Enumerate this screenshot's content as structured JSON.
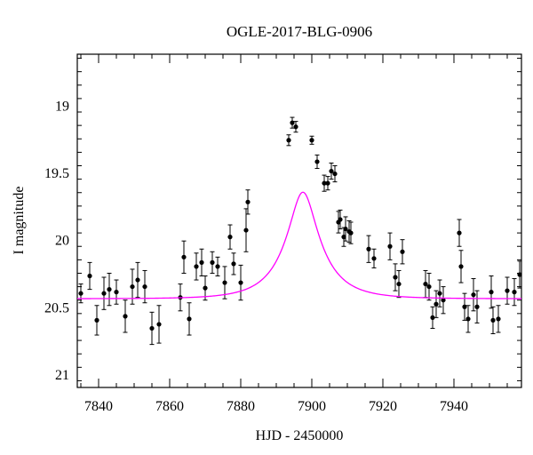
{
  "chart_data": {
    "type": "scatter",
    "title": "OGLE-2017-BLG-0906",
    "xlabel": "HJD - 2450000",
    "ylabel": "I magnitude",
    "xlim": [
      7834,
      7959
    ],
    "ylim": [
      21.1,
      18.62
    ],
    "y_inverted": true,
    "grid": false,
    "x_ticks": [
      7840,
      7860,
      7880,
      7900,
      7920,
      7940
    ],
    "y_ticks": [
      19,
      19.5,
      20,
      20.5,
      21
    ],
    "x_tick_labels": [
      "7840",
      "7860",
      "7880",
      "7900",
      "7920",
      "7940"
    ],
    "y_tick_labels": [
      "19",
      "19.5",
      "20",
      "20.5",
      "21"
    ],
    "colors": {
      "model": "#ff00ff",
      "points": "#000000",
      "axes": "#000000"
    },
    "series": [
      {
        "type": "errorbar",
        "x": [
          7835,
          7837.5,
          7839.5,
          7841.5,
          7843,
          7845,
          7847.5,
          7849.5,
          7851,
          7853,
          7855,
          7857,
          7863,
          7864,
          7865.5,
          7867.5,
          7869,
          7870,
          7872,
          7873.5,
          7875.5,
          7877,
          7878,
          7880,
          7881.5,
          7882,
          7893.5,
          7894.5,
          7895.5,
          7900,
          7901.5,
          7903.5,
          7904.5,
          7905.5,
          7906.5,
          7907.5,
          7908,
          7909,
          7909.5,
          7910.5,
          7911,
          7916,
          7917.5,
          7922,
          7923.5,
          7924.5,
          7925.5,
          7932,
          7933,
          7934,
          7935,
          7936,
          7937,
          7941.5,
          7942,
          7943,
          7944,
          7945.5,
          7946.5,
          7950.5,
          7951,
          7952.5,
          7955,
          7957,
          7958.5
        ],
        "y": [
          20.4,
          20.27,
          20.6,
          20.4,
          20.37,
          20.39,
          20.57,
          20.35,
          20.3,
          20.35,
          20.66,
          20.63,
          20.43,
          20.13,
          20.59,
          20.2,
          20.17,
          20.36,
          20.17,
          20.2,
          20.32,
          19.98,
          20.18,
          20.32,
          19.93,
          19.72,
          19.26,
          19.13,
          19.16,
          19.26,
          19.42,
          19.58,
          19.58,
          19.49,
          19.51,
          19.87,
          19.85,
          19.98,
          19.92,
          19.94,
          19.95,
          20.07,
          20.14,
          20.05,
          20.28,
          20.33,
          20.09,
          20.33,
          20.35,
          20.58,
          20.48,
          20.4,
          20.45,
          19.95,
          20.2,
          20.5,
          20.59,
          20.41,
          20.5,
          20.39,
          20.6,
          20.59,
          20.38,
          20.39,
          20.26
        ],
        "err": [
          0.07,
          0.1,
          0.11,
          0.12,
          0.12,
          0.09,
          0.12,
          0.13,
          0.13,
          0.12,
          0.12,
          0.14,
          0.1,
          0.12,
          0.12,
          0.1,
          0.1,
          0.09,
          0.08,
          0.07,
          0.12,
          0.09,
          0.08,
          0.13,
          0.16,
          0.09,
          0.04,
          0.04,
          0.04,
          0.03,
          0.05,
          0.06,
          0.05,
          0.06,
          0.06,
          0.08,
          0.07,
          0.07,
          0.09,
          0.08,
          0.08,
          0.1,
          0.07,
          0.1,
          0.1,
          0.1,
          0.09,
          0.1,
          0.1,
          0.08,
          0.1,
          0.1,
          0.1,
          0.1,
          0.12,
          0.1,
          0.1,
          0.12,
          0.12,
          0.12,
          0.1,
          0.1,
          0.1,
          0.1,
          0.1
        ]
      },
      {
        "type": "model",
        "t0": 7897.5,
        "u0": 0.33,
        "tE": 11,
        "baseline_mag": 20.44,
        "blend_fraction": 0.5
      }
    ]
  }
}
